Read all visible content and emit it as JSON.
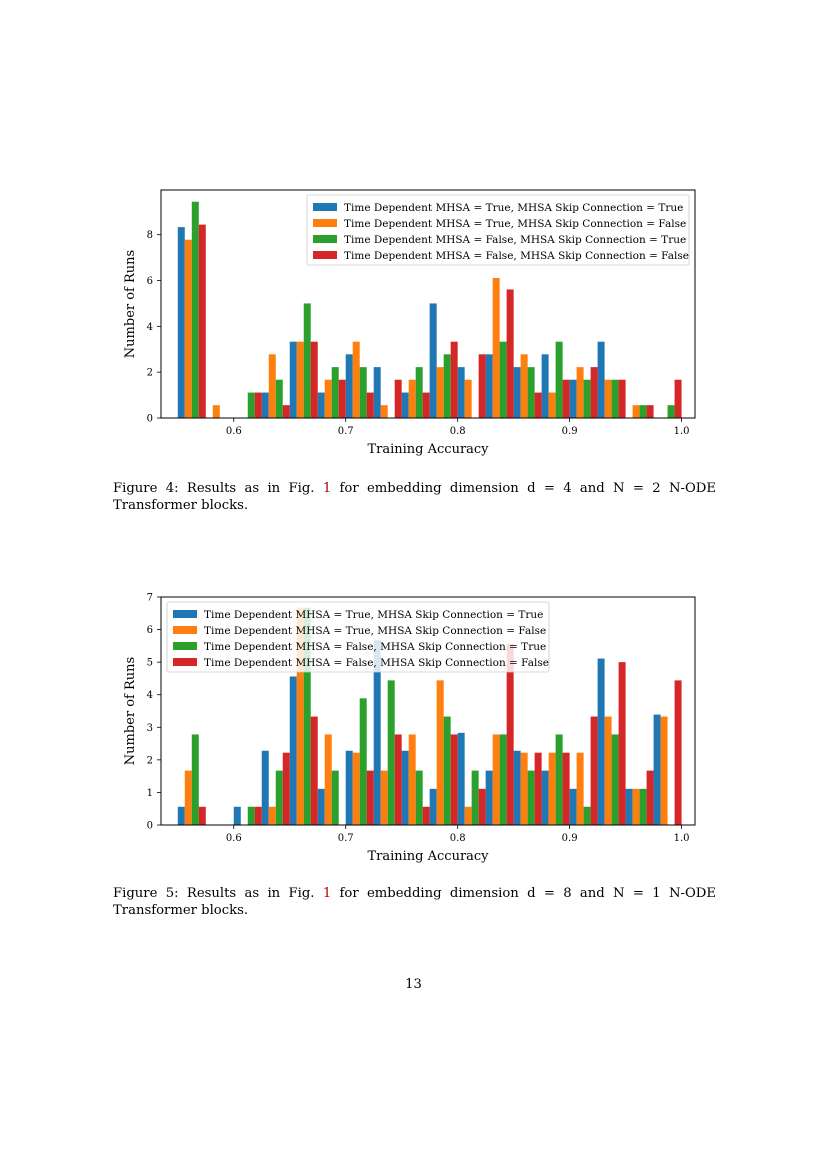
{
  "colors": {
    "s1": "#1f77b4",
    "s2": "#ff7f0e",
    "s3": "#2ca02c",
    "s4": "#d62728"
  },
  "chart_data": [
    {
      "type": "bar",
      "xlabel": "Training Accuracy",
      "ylabel": "Number of Runs",
      "xlim": [
        0.535,
        1.012
      ],
      "ylim": [
        0,
        9.95
      ],
      "xticks": [
        0.6,
        0.7,
        0.8,
        0.9,
        1.0
      ],
      "xtick_labels": [
        "0.6",
        "0.7",
        "0.8",
        "0.9",
        "1.0"
      ],
      "yticks": [
        0,
        2,
        4,
        6,
        8
      ],
      "ytick_labels": [
        "0",
        "2",
        "4",
        "6",
        "8"
      ],
      "legend_position": "top-right",
      "bins": [
        0.55,
        0.575,
        0.6,
        0.625,
        0.65,
        0.675,
        0.7,
        0.725,
        0.75,
        0.775,
        0.8,
        0.825,
        0.85,
        0.875,
        0.9,
        0.925,
        0.95,
        0.975
      ],
      "series": [
        {
          "name": "Time Dependent MHSA = True, MHSA Skip Connection = True",
          "values": [
            8.33,
            0,
            0,
            1.11,
            3.33,
            1.11,
            2.78,
            2.22,
            1.11,
            5.0,
            2.22,
            2.78,
            2.22,
            2.78,
            1.67,
            3.33,
            0,
            0
          ]
        },
        {
          "name": "Time Dependent MHSA = True, MHSA Skip Connection = False",
          "values": [
            7.78,
            0.56,
            0,
            2.78,
            3.33,
            1.67,
            3.33,
            0.56,
            1.67,
            2.22,
            1.67,
            6.11,
            2.78,
            1.11,
            2.22,
            1.67,
            0.56,
            0
          ]
        },
        {
          "name": "Time Dependent MHSA = False, MHSA Skip Connection = True",
          "values": [
            9.44,
            0,
            1.11,
            1.67,
            5.0,
            2.22,
            2.22,
            0,
            2.22,
            2.78,
            0,
            3.33,
            2.22,
            3.33,
            1.67,
            1.67,
            0.56,
            0.56
          ]
        },
        {
          "name": "Time Dependent MHSA = False, MHSA Skip Connection = False",
          "values": [
            8.44,
            0,
            1.11,
            0.56,
            3.33,
            1.67,
            1.11,
            1.67,
            1.11,
            3.33,
            2.78,
            5.61,
            1.11,
            1.67,
            2.22,
            1.67,
            0.56,
            1.67
          ]
        }
      ]
    },
    {
      "type": "bar",
      "xlabel": "Training Accuracy",
      "ylabel": "Number of Runs",
      "xlim": [
        0.535,
        1.012
      ],
      "ylim": [
        0,
        7
      ],
      "xticks": [
        0.6,
        0.7,
        0.8,
        0.9,
        1.0
      ],
      "xtick_labels": [
        "0.6",
        "0.7",
        "0.8",
        "0.9",
        "1.0"
      ],
      "yticks": [
        0,
        1,
        2,
        3,
        4,
        5,
        6,
        7
      ],
      "ytick_labels": [
        "0",
        "1",
        "2",
        "3",
        "4",
        "5",
        "6",
        "7"
      ],
      "legend_position": "top-left",
      "bins": [
        0.55,
        0.575,
        0.6,
        0.625,
        0.65,
        0.675,
        0.7,
        0.725,
        0.75,
        0.775,
        0.8,
        0.825,
        0.85,
        0.875,
        0.9,
        0.925,
        0.95,
        0.975
      ],
      "series": [
        {
          "name": "Time Dependent MHSA = True, MHSA Skip Connection = True",
          "values": [
            0.56,
            0,
            0.56,
            2.28,
            4.56,
            1.11,
            2.28,
            5.67,
            2.28,
            1.11,
            2.83,
            1.67,
            2.28,
            1.67,
            1.11,
            5.11,
            1.11,
            3.39
          ]
        },
        {
          "name": "Time Dependent MHSA = True, MHSA Skip Connection = False",
          "values": [
            1.67,
            0,
            0,
            0.56,
            6.67,
            2.78,
            2.22,
            1.67,
            2.78,
            4.44,
            0.56,
            2.78,
            2.22,
            2.22,
            2.22,
            3.33,
            1.11,
            3.33
          ]
        },
        {
          "name": "Time Dependent MHSA = False, MHSA Skip Connection = True",
          "values": [
            2.78,
            0,
            0.56,
            1.67,
            6.67,
            1.67,
            3.89,
            4.44,
            1.67,
            3.33,
            1.67,
            2.78,
            1.67,
            2.78,
            0.56,
            2.78,
            1.11,
            0
          ]
        },
        {
          "name": "Time Dependent MHSA = False, MHSA Skip Connection = False",
          "values": [
            0.56,
            0,
            0.56,
            2.22,
            3.33,
            0,
            1.67,
            2.78,
            0.56,
            2.78,
            1.11,
            5.56,
            2.22,
            2.22,
            3.33,
            5.0,
            1.67,
            4.44
          ]
        }
      ]
    }
  ],
  "captions": [
    {
      "prefix": "Figure 4:  Results as in Fig.",
      "ref": "1",
      "suffix": " for embedding dimension d = 4 and N = 2 N-ODE Transformer blocks."
    },
    {
      "prefix": "Figure 5:  Results as in Fig.",
      "ref": "1",
      "suffix": " for embedding dimension d = 8 and N = 1 N-ODE Transformer blocks."
    }
  ],
  "page_number": "13"
}
